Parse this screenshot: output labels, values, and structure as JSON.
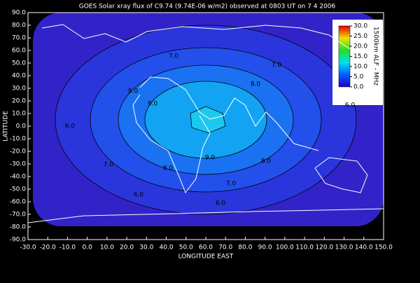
{
  "chart_data": {
    "type": "contour-map",
    "title": "GOES Solar xray flux of C9.74 (9.74E-06 w/m2) observed at 0803 UT on 7 4 2006",
    "x_label": "LONGITUDE EAST",
    "y_label": "LATITUDE",
    "xlim": [
      -30,
      150
    ],
    "ylim": [
      -90,
      90
    ],
    "xticks": [
      {
        "value": -30,
        "label": "-30.0"
      },
      {
        "value": -20,
        "label": "-20.0"
      },
      {
        "value": -10,
        "label": "-10.0"
      },
      {
        "value": 0,
        "label": "0.0"
      },
      {
        "value": 10,
        "label": "10.0"
      },
      {
        "value": 20,
        "label": "20.0"
      },
      {
        "value": 30,
        "label": "30.0"
      },
      {
        "value": 40,
        "label": "40.0"
      },
      {
        "value": 50,
        "label": "50.0"
      },
      {
        "value": 60,
        "label": "60.0"
      },
      {
        "value": 70,
        "label": "70.0"
      },
      {
        "value": 80,
        "label": "80.0"
      },
      {
        "value": 90,
        "label": "90.0"
      },
      {
        "value": 100,
        "label": "100.0"
      },
      {
        "value": 110,
        "label": "110.0"
      },
      {
        "value": 120,
        "label": "120.0"
      },
      {
        "value": 130,
        "label": "130.0"
      },
      {
        "value": 140,
        "label": "140.0"
      },
      {
        "value": 150,
        "label": "150.0"
      }
    ],
    "yticks": [
      {
        "value": 90,
        "label": "90.0"
      },
      {
        "value": 80,
        "label": "80.0"
      },
      {
        "value": 70,
        "label": "70.0"
      },
      {
        "value": 60,
        "label": "60.0"
      },
      {
        "value": 50,
        "label": "50.0"
      },
      {
        "value": 40,
        "label": "40.0"
      },
      {
        "value": 30,
        "label": "30.0"
      },
      {
        "value": 20,
        "label": "20.0"
      },
      {
        "value": 10,
        "label": "10.0"
      },
      {
        "value": 0,
        "label": "0.0"
      },
      {
        "value": -10,
        "label": "-10.0"
      },
      {
        "value": -20,
        "label": "-20.0"
      },
      {
        "value": -30,
        "label": "-30.0"
      },
      {
        "value": -40,
        "label": "-40.0"
      },
      {
        "value": -50,
        "label": "-50.0"
      },
      {
        "value": -60,
        "label": "-60.0"
      },
      {
        "value": -70,
        "label": "-70.0"
      },
      {
        "value": -80,
        "label": "-80.0"
      },
      {
        "value": -90,
        "label": "-90.0"
      }
    ],
    "contours": [
      {
        "value": 6,
        "label": "6.0"
      },
      {
        "value": 7,
        "label": "7.0"
      },
      {
        "value": 8,
        "label": "8.0"
      },
      {
        "value": 9,
        "label": "9.0"
      }
    ],
    "colorbar_label": "1500km ALF - MHz",
    "colorbar_lim": [
      0,
      30
    ],
    "colorbar_ticks": [
      {
        "value": 30,
        "label": "30.0"
      },
      {
        "value": 25,
        "label": "25.0"
      },
      {
        "value": 20,
        "label": "20.0"
      },
      {
        "value": 15,
        "label": "15.0"
      },
      {
        "value": 10,
        "label": "10.0"
      },
      {
        "value": 5,
        "label": "5.0"
      },
      {
        "value": 0,
        "label": "0.0"
      }
    ]
  }
}
